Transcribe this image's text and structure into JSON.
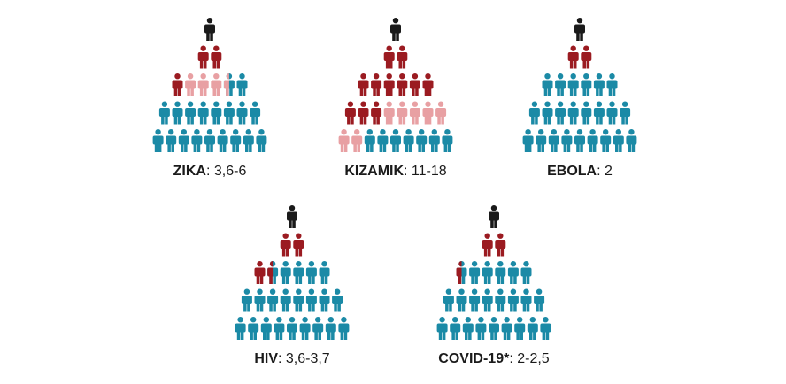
{
  "panels": [
    {
      "name": "ZIKA",
      "range": ": 3,6-6"
    },
    {
      "name": "KIZAMIK",
      "range": ": 11-18"
    },
    {
      "name": "EBOLA",
      "range": ": 2"
    },
    {
      "name": "HIV",
      "range": ": 3,6-3,7"
    },
    {
      "name": "COVID-19*",
      "range": ": 2-2,5"
    }
  ]
}
